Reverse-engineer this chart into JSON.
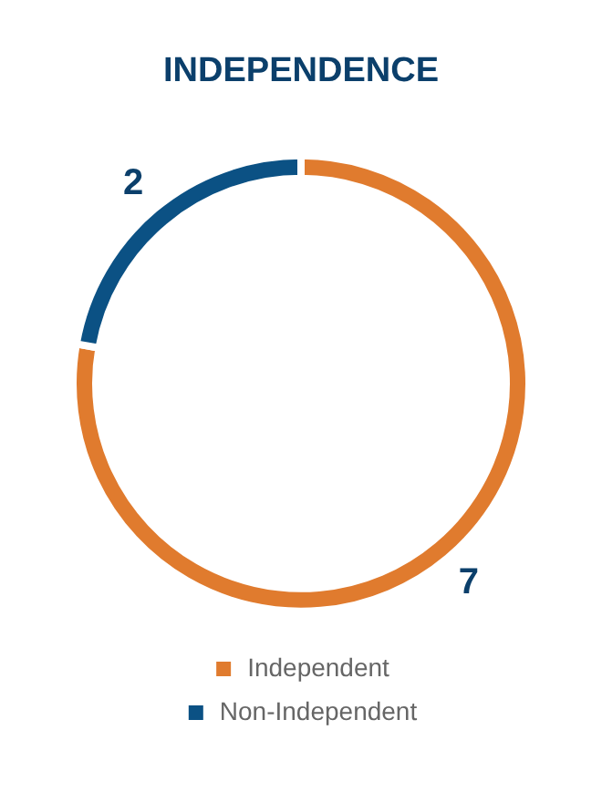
{
  "chart_data": {
    "type": "donut",
    "title": "INDEPENDENCE",
    "categories": [
      "Independent",
      "Non-Independent"
    ],
    "values": [
      7,
      2
    ],
    "colors": [
      "#e07b2e",
      "#0b5184"
    ],
    "data_labels": true,
    "legend": "bottom"
  }
}
